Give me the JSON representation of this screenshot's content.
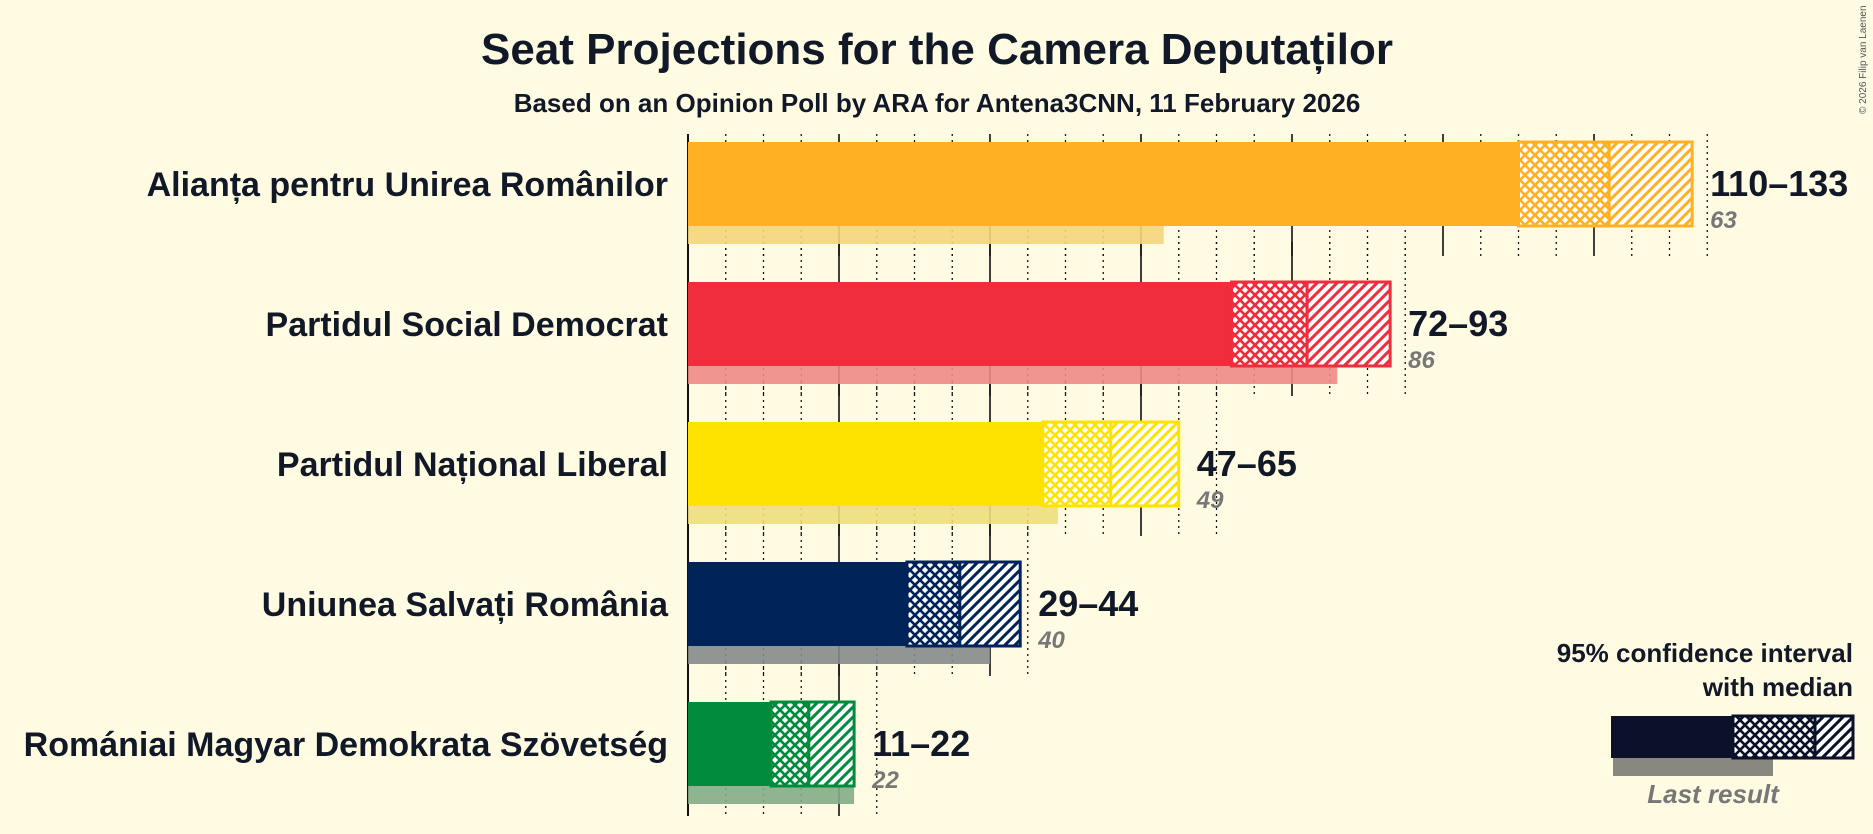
{
  "copyright": "© 2026 Filip van Laenen",
  "chart_data": {
    "type": "bar",
    "title": "Seat Projections for the Camera Deputaților",
    "subtitle": "Based on an Opinion Poll by ARA for Antena3CNN, 11 February 2026",
    "xlim": [
      0,
      140
    ],
    "grid_major_every": 20,
    "grid_minor_every": 5,
    "series": [
      {
        "name": "Alianța pentru Unirea Românilor",
        "low": 110,
        "median": 122,
        "high": 133,
        "range_label": "110–133",
        "last_result": 63,
        "last_label": "63",
        "color": "#FFB023",
        "last_color": "#F5D57D"
      },
      {
        "name": "Partidul Social Democrat",
        "low": 72,
        "median": 82,
        "high": 93,
        "range_label": "72–93",
        "last_result": 86,
        "last_label": "86",
        "color": "#EF2D3D",
        "last_color": "#F08A86"
      },
      {
        "name": "Partidul Național Liberal",
        "low": 47,
        "median": 56,
        "high": 65,
        "range_label": "47–65",
        "last_result": 49,
        "last_label": "49",
        "color": "#FFE300",
        "last_color": "#EEDD7C"
      },
      {
        "name": "Uniunea Salvați România",
        "low": 29,
        "median": 36,
        "high": 44,
        "range_label": "29–44",
        "last_result": 40,
        "last_label": "40",
        "color": "#00235A",
        "last_color": "#85898A"
      },
      {
        "name": "Romániai Magyar Demokrata Szövetség",
        "low": 11,
        "median": 16,
        "high": 22,
        "range_label": "11–22",
        "last_result": 22,
        "last_label": "22",
        "color": "#008C3C",
        "last_color": "#85AC86"
      }
    ],
    "legend": {
      "title_line1": "95% confidence interval",
      "title_line2": "with median",
      "last_result_label": "Last result",
      "placement": "bottom-right"
    }
  }
}
